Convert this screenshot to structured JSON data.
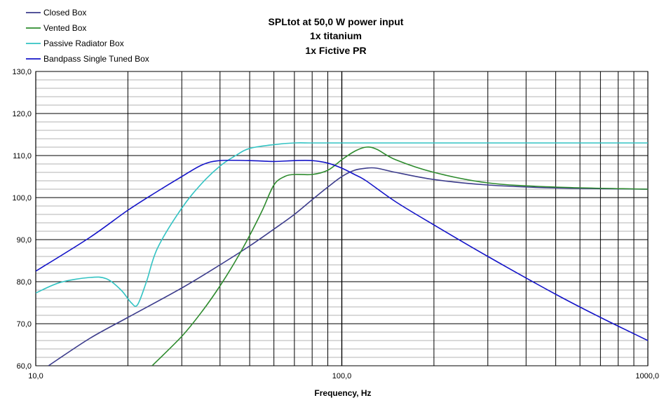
{
  "chart_data": {
    "type": "line",
    "title_lines": [
      "SPLtot at 50,0 W power input",
      "1x titanium",
      "1x Fictive PR"
    ],
    "xlabel": "Frequency, Hz",
    "ylabel": "",
    "xscale": "log",
    "xlim": [
      10,
      1000
    ],
    "ylim": [
      60,
      130
    ],
    "x_ticks": [
      10,
      100,
      1000
    ],
    "x_tick_labels": [
      "10,0",
      "100,0",
      "1000,0"
    ],
    "y_ticks": [
      60,
      70,
      80,
      90,
      100,
      110,
      120,
      130
    ],
    "y_tick_labels": [
      "60,0",
      "70,0",
      "80,0",
      "90,0",
      "100,0",
      "110,0",
      "120,0",
      "130,0"
    ],
    "grid": true,
    "legend_position": "top-left",
    "series": [
      {
        "name": "Closed Box",
        "color": "#3c3c8c",
        "x": [
          11,
          15,
          20,
          30,
          40,
          50,
          60,
          70,
          80,
          90,
          100,
          110,
          120,
          130,
          150,
          200,
          300,
          500,
          1000
        ],
        "y": [
          60,
          66.5,
          71.5,
          78.5,
          84,
          88.5,
          92.5,
          96,
          99.5,
          102.5,
          105,
          106.5,
          107,
          107,
          106,
          104.3,
          103,
          102.3,
          102
        ]
      },
      {
        "name": "Vented Box",
        "color": "#2e8b2e",
        "x": [
          24,
          30,
          35,
          40,
          45,
          50,
          55,
          60,
          65,
          70,
          80,
          90,
          100,
          110,
          120,
          130,
          150,
          200,
          300,
          500,
          1000
        ],
        "y": [
          60,
          67,
          73,
          79,
          85,
          91,
          97,
          103,
          105,
          105.5,
          105.5,
          106.5,
          109,
          111,
          112,
          111.5,
          109,
          106,
          103.5,
          102.5,
          102
        ]
      },
      {
        "name": "Passive Radiator Box",
        "color": "#33c3c3",
        "x": [
          10,
          12,
          15,
          17,
          19,
          20.5,
          21.5,
          23,
          25,
          30,
          35,
          40,
          45,
          50,
          60,
          70,
          80,
          100,
          150,
          200,
          300,
          500,
          1000
        ],
        "y": [
          77.3,
          79.8,
          81,
          80.7,
          78,
          75,
          74.5,
          80,
          88,
          97.5,
          103.5,
          107.5,
          110,
          111.7,
          112.6,
          113,
          113,
          113,
          113,
          113,
          113,
          113,
          113
        ]
      },
      {
        "name": "Bandpass Single Tuned Box",
        "color": "#1414c8",
        "x": [
          10,
          15,
          20,
          25,
          30,
          35,
          40,
          50,
          60,
          70,
          80,
          90,
          100,
          110,
          120,
          150,
          200,
          300,
          500,
          700,
          1000
        ],
        "y": [
          82.5,
          90.5,
          97,
          101.5,
          105,
          107.8,
          108.8,
          108.8,
          108.6,
          108.8,
          108.8,
          108.2,
          107,
          105.5,
          104,
          99,
          93.5,
          86,
          77,
          71.5,
          66
        ]
      }
    ]
  }
}
